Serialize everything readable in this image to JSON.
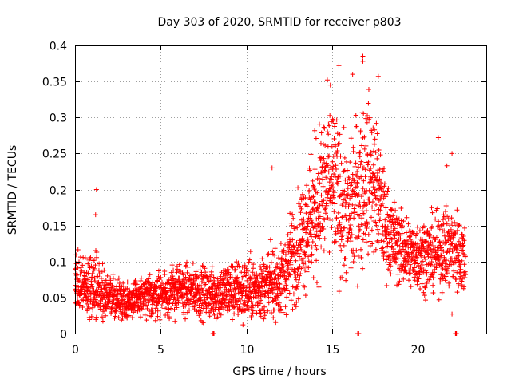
{
  "chart_data": {
    "type": "scatter",
    "title": "Day 303 of 2020, SRMTID for receiver p803",
    "xlabel": "GPS time / hours",
    "ylabel": "SRMTID / TECUs",
    "xlim": [
      0,
      24
    ],
    "ylim": [
      0,
      0.4
    ],
    "xticks": [
      0,
      5,
      10,
      15,
      20
    ],
    "xtick_labels": [
      "0",
      "5",
      "10",
      "15",
      "20"
    ],
    "yticks": [
      0,
      0.05,
      0.1,
      0.15,
      0.2,
      0.25,
      0.3,
      0.35,
      0.4
    ],
    "ytick_labels": [
      "0",
      "0.05",
      "0.1",
      "0.15",
      "0.2",
      "0.25",
      "0.3",
      "0.35",
      "0.4"
    ],
    "grid": true,
    "marker": "plus",
    "color": "#ff0000",
    "series": [
      {
        "name": "SRMTID",
        "envelope": {
          "hours": [
            0.0,
            0.5,
            1.0,
            1.5,
            2.0,
            3.0,
            4.0,
            5.0,
            6.0,
            7.0,
            8.0,
            9.0,
            10.0,
            11.0,
            12.0,
            12.5,
            13.0,
            13.5,
            14.0,
            14.5,
            15.0,
            15.5,
            16.0,
            16.5,
            17.0,
            17.5,
            18.0,
            18.5,
            19.0,
            19.5,
            20.0,
            20.5,
            21.0,
            21.5,
            22.0,
            22.5,
            22.8
          ],
          "median": [
            0.075,
            0.06,
            0.07,
            0.06,
            0.05,
            0.045,
            0.05,
            0.055,
            0.06,
            0.06,
            0.055,
            0.06,
            0.06,
            0.065,
            0.07,
            0.1,
            0.12,
            0.15,
            0.17,
            0.2,
            0.21,
            0.18,
            0.16,
            0.2,
            0.22,
            0.21,
            0.16,
            0.13,
            0.12,
            0.11,
            0.11,
            0.11,
            0.11,
            0.12,
            0.12,
            0.11,
            0.1
          ],
          "spread": [
            0.03,
            0.025,
            0.04,
            0.025,
            0.02,
            0.018,
            0.02,
            0.022,
            0.025,
            0.025,
            0.025,
            0.03,
            0.03,
            0.03,
            0.035,
            0.045,
            0.05,
            0.06,
            0.07,
            0.08,
            0.08,
            0.07,
            0.06,
            0.08,
            0.08,
            0.07,
            0.05,
            0.04,
            0.035,
            0.035,
            0.035,
            0.035,
            0.035,
            0.04,
            0.04,
            0.04,
            0.035
          ]
        },
        "sample_interval_hours": 0.0083,
        "notable_points": [
          {
            "x": 1.25,
            "y": 0.2
          },
          {
            "x": 1.2,
            "y": 0.165
          },
          {
            "x": 11.5,
            "y": 0.23
          },
          {
            "x": 15.4,
            "y": 0.372
          },
          {
            "x": 16.8,
            "y": 0.385
          },
          {
            "x": 16.8,
            "y": 0.378
          },
          {
            "x": 17.7,
            "y": 0.357
          },
          {
            "x": 16.2,
            "y": 0.36
          },
          {
            "x": 14.9,
            "y": 0.345
          },
          {
            "x": 21.2,
            "y": 0.272
          },
          {
            "x": 22.0,
            "y": 0.25
          },
          {
            "x": 21.7,
            "y": 0.233
          },
          {
            "x": 9.8,
            "y": 0.012
          },
          {
            "x": 22.0,
            "y": 0.027
          }
        ],
        "zero_markers": [
          8.05,
          16.5,
          22.2
        ]
      }
    ]
  }
}
